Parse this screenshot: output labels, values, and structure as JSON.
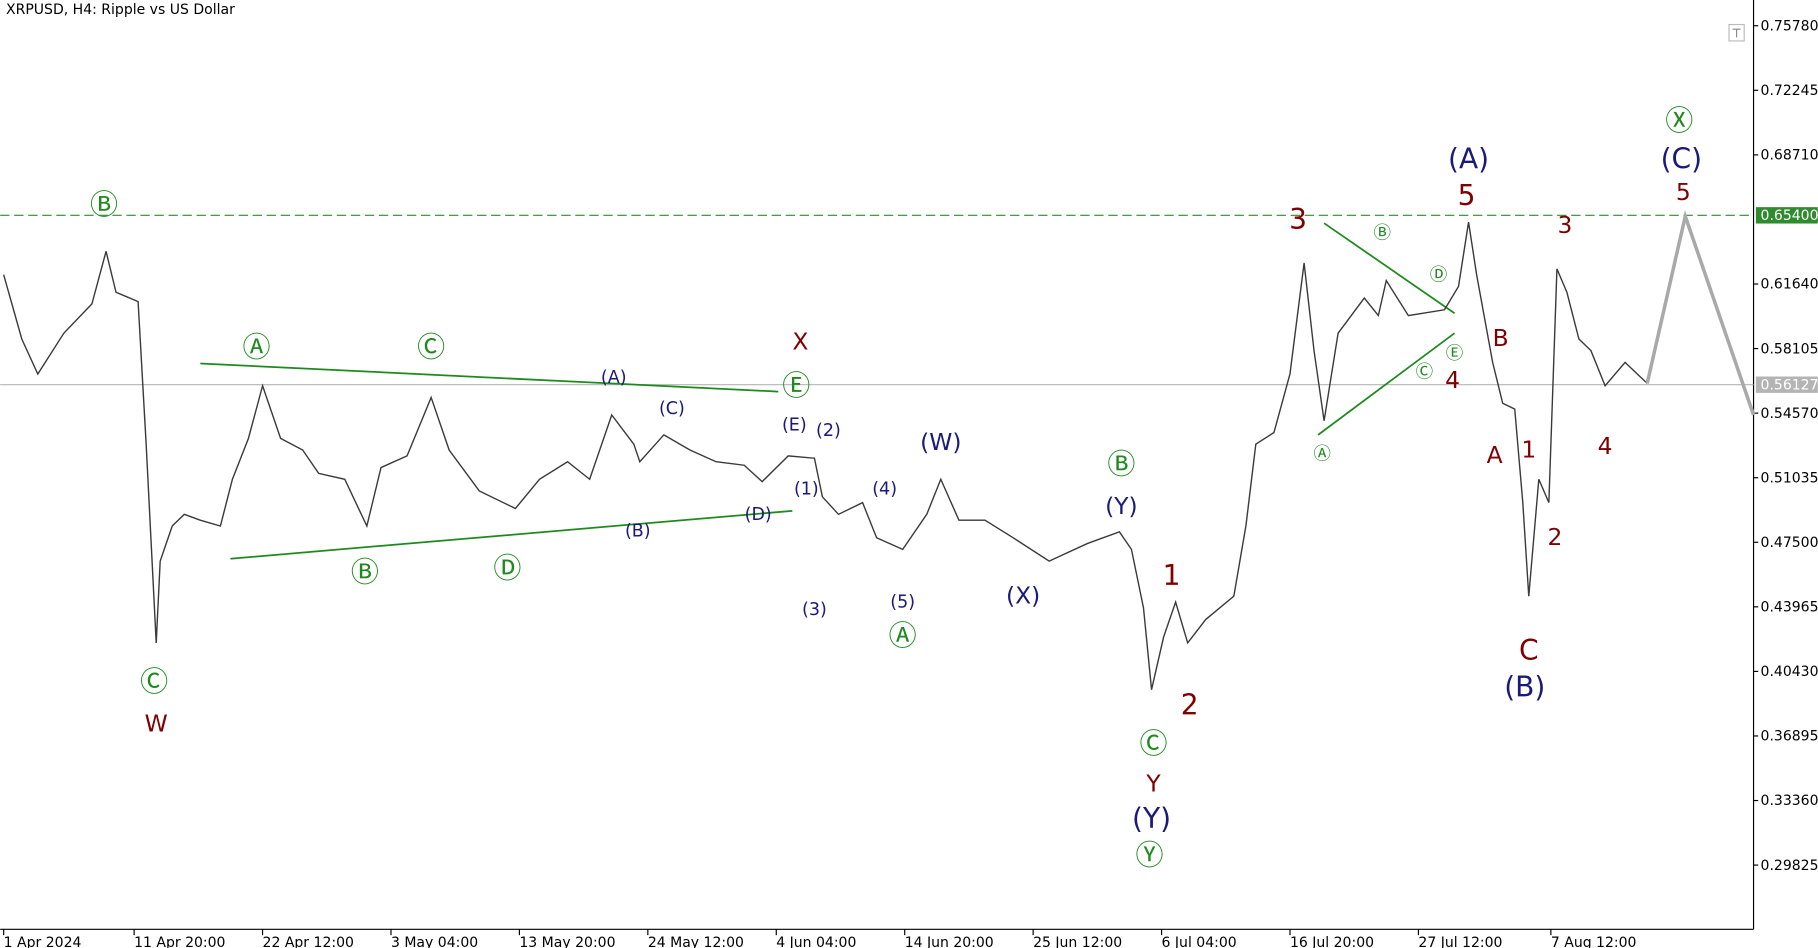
{
  "chart_data": {
    "type": "line",
    "title": "XRPUSD, H4:  Ripple vs US Dollar",
    "xlim": [
      -1.75,
      872
    ],
    "ylim": [
      0.2631,
      0.7719
    ],
    "xticks": [
      {
        "value": 0,
        "label": "1 Apr 2024"
      },
      {
        "value": 65,
        "label": "11 Apr 20:00"
      },
      {
        "value": 129,
        "label": "22 Apr 12:00"
      },
      {
        "value": 193,
        "label": "3 May 04:00"
      },
      {
        "value": 257,
        "label": "13 May 20:00"
      },
      {
        "value": 321,
        "label": "24 May 12:00"
      },
      {
        "value": 385,
        "label": "4 Jun 04:00"
      },
      {
        "value": 449,
        "label": "14 Jun 20:00"
      },
      {
        "value": 513,
        "label": "25 Jun 12:00"
      },
      {
        "value": 577,
        "label": "6 Jul 04:00"
      },
      {
        "value": 641,
        "label": "16 Jul 20:00"
      },
      {
        "value": 705,
        "label": "27 Jul 12:00"
      },
      {
        "value": 771,
        "label": "7 Aug 12:00"
      }
    ],
    "yticks": [
      {
        "value": 0.7578,
        "label": "0.75780"
      },
      0.72245,
      {
        "value": 0.6871,
        "label": "0.68710"
      },
      {
        "value": 0.6164,
        "label": "0.61640"
      },
      0.58105,
      {
        "value": 0.5457,
        "label": "0.54570"
      },
      0.51035,
      {
        "value": 0.475,
        "label": "0.47500"
      },
      0.43965,
      {
        "value": 0.4043,
        "label": "0.40430"
      },
      0.36895,
      {
        "value": 0.3336,
        "label": "0.33360"
      },
      0.29825
    ],
    "series": [
      {
        "color": "#3a3a3a",
        "x": [
          0,
          9,
          17,
          30,
          44,
          51,
          56,
          67,
          69,
          71,
          76,
          78,
          84,
          90,
          98,
          108,
          114,
          122,
          129,
          138,
          149,
          157,
          170,
          181,
          188,
          201,
          213,
          222,
          237,
          255,
          267,
          281,
          292,
          303,
          314,
          317,
          329,
          342,
          355,
          369,
          378,
          391,
          404,
          408,
          416,
          428,
          435,
          448,
          460,
          467,
          476,
          489,
          503,
          521,
          540,
          556,
          562,
          568,
          572,
          578,
          584,
          590,
          599,
          613,
          619,
          624,
          633,
          641,
          648,
          653,
          658,
          665,
          678,
          685,
          689,
          700,
          718,
          725,
          730,
          734,
          742,
          747,
          753,
          757,
          760,
          765,
          770,
          774,
          779,
          785,
          791,
          798,
          808,
          819
        ],
        "values": [
          0.6215,
          0.5863,
          0.5671,
          0.5895,
          0.6055,
          0.6343,
          0.6119,
          0.6068,
          0.5671,
          0.5287,
          0.4199,
          0.4647,
          0.4839,
          0.4903,
          0.4871,
          0.4839,
          0.5095,
          0.5319,
          0.5607,
          0.5319,
          0.5255,
          0.5127,
          0.5095,
          0.4839,
          0.5159,
          0.5223,
          0.5543,
          0.5255,
          0.5031,
          0.4935,
          0.5095,
          0.5191,
          0.5095,
          0.5447,
          0.5287,
          0.5191,
          0.5338,
          0.5255,
          0.5191,
          0.5172,
          0.5082,
          0.5223,
          0.521,
          0.4999,
          0.4903,
          0.4967,
          0.4775,
          0.4711,
          0.4903,
          0.5095,
          0.4871,
          0.4871,
          0.4775,
          0.4647,
          0.4743,
          0.4807,
          0.4711,
          0.4391,
          0.3943,
          0.4231,
          0.4423,
          0.4199,
          0.4327,
          0.4455,
          0.4839,
          0.5287,
          0.5351,
          0.5671,
          0.6279,
          0.5799,
          0.5415,
          0.5895,
          0.6087,
          0.5991,
          0.6183,
          0.5991,
          0.6023,
          0.6151,
          0.6503,
          0.6215,
          0.5735,
          0.5511,
          0.5479,
          0.4967,
          0.4455,
          0.5095,
          0.4967,
          0.6247,
          0.6119,
          0.5863,
          0.5799,
          0.5607,
          0.5735,
          0.562
        ]
      },
      {
        "color": "#a9a9a9",
        "x": [
          819,
          838,
          872
        ],
        "values": [
          0.562,
          0.6535,
          0.5447
        ]
      }
    ],
    "levels": [
      {
        "value": 0.654,
        "label": "0.65400",
        "color": "#2e8b2e",
        "dashed": true
      },
      {
        "value": 0.56127,
        "color": "#b4b4b4",
        "dashed": false
      }
    ],
    "trendlines": [
      {
        "x": [
          98,
          386
        ],
        "values": [
          0.5729,
          0.5575
        ],
        "color": "#1e8a1e"
      },
      {
        "x": [
          113,
          393
        ],
        "values": [
          0.466,
          0.4922
        ],
        "color": "#1e8a1e"
      },
      {
        "x": [
          658,
          723
        ],
        "values": [
          0.6497,
          0.6004
        ],
        "color": "#1e8a1e"
      },
      {
        "x": [
          655,
          723
        ],
        "values": [
          0.5338,
          0.5895
        ],
        "color": "#1e8a1e"
      }
    ],
    "annotations": [
      {
        "text": "Ⓑ",
        "x": 50,
        "y": 0.659,
        "color": "#1e8a1e",
        "size": "large"
      },
      {
        "text": "Ⓒ",
        "x": 75,
        "y": 0.398,
        "color": "#1e8a1e",
        "size": "large"
      },
      {
        "text": "W",
        "x": 76,
        "y": 0.375,
        "color": "#7f0000",
        "size": "medium"
      },
      {
        "text": "Ⓐ",
        "x": 126,
        "y": 0.581,
        "color": "#1e8a1e",
        "size": "large"
      },
      {
        "text": "Ⓒ",
        "x": 213,
        "y": 0.581,
        "color": "#1e8a1e",
        "size": "large"
      },
      {
        "text": "Ⓑ",
        "x": 180,
        "y": 0.458,
        "color": "#1e8a1e",
        "size": "large"
      },
      {
        "text": "Ⓓ",
        "x": 251,
        "y": 0.46,
        "color": "#1e8a1e",
        "size": "large"
      },
      {
        "text": "(A)",
        "x": 304,
        "y": 0.565,
        "color": "#1a1a7a",
        "size": "small"
      },
      {
        "text": "(C)",
        "x": 333,
        "y": 0.548,
        "color": "#1a1a7a",
        "size": "small"
      },
      {
        "text": "(B)",
        "x": 316,
        "y": 0.481,
        "color": "#1a1a7a",
        "size": "small"
      },
      {
        "text": "(D)",
        "x": 376,
        "y": 0.49,
        "color": "#1a1a7a",
        "size": "small"
      },
      {
        "text": "X",
        "x": 397,
        "y": 0.584,
        "color": "#7f0000",
        "size": "medium"
      },
      {
        "text": "Ⓔ",
        "x": 395,
        "y": 0.56,
        "color": "#1e8a1e",
        "size": "large"
      },
      {
        "text": "(E)",
        "x": 394,
        "y": 0.539,
        "color": "#1a1a7a",
        "size": "small"
      },
      {
        "text": "(2)",
        "x": 411,
        "y": 0.536,
        "color": "#1a1a7a",
        "size": "small"
      },
      {
        "text": "(1)",
        "x": 400,
        "y": 0.504,
        "color": "#1a1a7a",
        "size": "small"
      },
      {
        "text": "(3)",
        "x": 404,
        "y": 0.438,
        "color": "#1a1a7a",
        "size": "small"
      },
      {
        "text": "(4)",
        "x": 439,
        "y": 0.504,
        "color": "#1a1a7a",
        "size": "small"
      },
      {
        "text": "(5)",
        "x": 448,
        "y": 0.442,
        "color": "#1a1a7a",
        "size": "small"
      },
      {
        "text": "Ⓐ",
        "x": 448,
        "y": 0.423,
        "color": "#1e8a1e",
        "size": "large"
      },
      {
        "text": "(W)",
        "x": 467,
        "y": 0.529,
        "color": "#1a1a7a",
        "size": "medium"
      },
      {
        "text": "(X)",
        "x": 508,
        "y": 0.445,
        "color": "#1a1a7a",
        "size": "medium"
      },
      {
        "text": "Ⓑ",
        "x": 557,
        "y": 0.517,
        "color": "#1e8a1e",
        "size": "large"
      },
      {
        "text": "(Y)",
        "x": 557,
        "y": 0.494,
        "color": "#1a1a7a",
        "size": "medium"
      },
      {
        "text": "1",
        "x": 582,
        "y": 0.456,
        "color": "#7f0000",
        "size": "large"
      },
      {
        "text": "2",
        "x": 591,
        "y": 0.385,
        "color": "#7f0000",
        "size": "large"
      },
      {
        "text": "Ⓒ",
        "x": 573,
        "y": 0.364,
        "color": "#1e8a1e",
        "size": "large"
      },
      {
        "text": "Y",
        "x": 573,
        "y": 0.342,
        "color": "#7f0000",
        "size": "medium"
      },
      {
        "text": "(Y)",
        "x": 572,
        "y": 0.323,
        "color": "#1a1a7a",
        "size": "large"
      },
      {
        "text": "Ⓨ",
        "x": 571,
        "y": 0.303,
        "color": "#1e8a1e",
        "size": "large"
      },
      {
        "text": "3",
        "x": 645,
        "y": 0.651,
        "color": "#7f0000",
        "size": "large"
      },
      {
        "text": "Ⓐ",
        "x": 657,
        "y": 0.523,
        "color": "#1e8a1e",
        "size": "small"
      },
      {
        "text": "Ⓑ",
        "x": 687,
        "y": 0.644,
        "color": "#1e8a1e",
        "size": "small"
      },
      {
        "text": "Ⓓ",
        "x": 715,
        "y": 0.621,
        "color": "#1e8a1e",
        "size": "small"
      },
      {
        "text": "Ⓔ",
        "x": 723,
        "y": 0.578,
        "color": "#1e8a1e",
        "size": "small"
      },
      {
        "text": "Ⓒ",
        "x": 708,
        "y": 0.568,
        "color": "#1e8a1e",
        "size": "small"
      },
      {
        "text": "4",
        "x": 722,
        "y": 0.563,
        "color": "#7f0000",
        "size": "medium"
      },
      {
        "text": "(A)",
        "x": 730,
        "y": 0.684,
        "color": "#1a1a7a",
        "size": "large"
      },
      {
        "text": "5",
        "x": 729,
        "y": 0.664,
        "color": "#7f0000",
        "size": "large"
      },
      {
        "text": "B",
        "x": 746,
        "y": 0.586,
        "color": "#7f0000",
        "size": "medium"
      },
      {
        "text": "A",
        "x": 743,
        "y": 0.522,
        "color": "#7f0000",
        "size": "medium"
      },
      {
        "text": "1",
        "x": 760,
        "y": 0.525,
        "color": "#7f0000",
        "size": "medium"
      },
      {
        "text": "2",
        "x": 773,
        "y": 0.477,
        "color": "#7f0000",
        "size": "medium"
      },
      {
        "text": "C",
        "x": 760,
        "y": 0.415,
        "color": "#7f0000",
        "size": "large"
      },
      {
        "text": "(B)",
        "x": 758,
        "y": 0.395,
        "color": "#1a1a7a",
        "size": "large"
      },
      {
        "text": "3",
        "x": 778,
        "y": 0.648,
        "color": "#7f0000",
        "size": "medium"
      },
      {
        "text": "4",
        "x": 798,
        "y": 0.527,
        "color": "#7f0000",
        "size": "medium"
      },
      {
        "text": "Ⓧ",
        "x": 835,
        "y": 0.705,
        "color": "#1e8a1e",
        "size": "large"
      },
      {
        "text": "(C)",
        "x": 836,
        "y": 0.684,
        "color": "#1a1a7a",
        "size": "large"
      },
      {
        "text": "5",
        "x": 837,
        "y": 0.666,
        "color": "#7f0000",
        "size": "medium"
      }
    ]
  }
}
